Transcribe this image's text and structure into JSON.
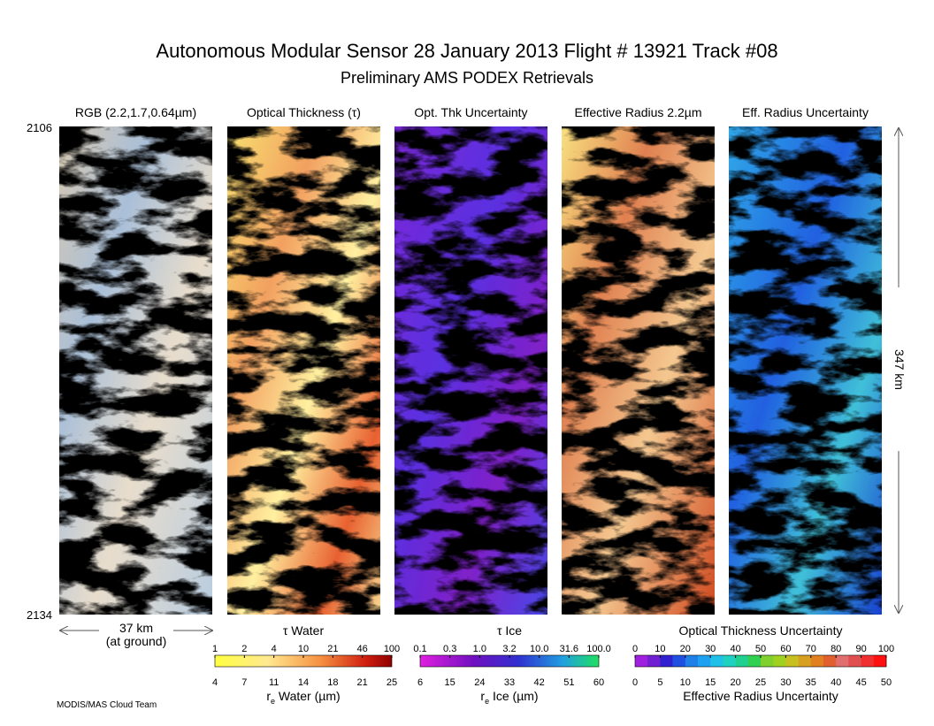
{
  "header": {
    "title": "Autonomous Modular Sensor  28 January 2013  Flight # 13921 Track #08",
    "subtitle": "Preliminary AMS PODEX Retrievals"
  },
  "panels": [
    "RGB (2.2,1.7,0.64µm)",
    "Optical Thickness (τ)",
    "Opt. Thk Uncertainty",
    "Effective Radius 2.2µm",
    "Eff. Radius Uncertainty"
  ],
  "scan_lines": {
    "start": "2106",
    "end": "2134"
  },
  "swath": {
    "length": "347 km",
    "width": "37 km",
    "width_note": "(at ground)"
  },
  "colorbars": [
    {
      "title": "τ Water",
      "top_ticks": [
        "1",
        "2",
        "4",
        "10",
        "21",
        "46",
        "100"
      ],
      "bottom_ticks": [
        "4",
        "7",
        "11",
        "14",
        "18",
        "21",
        "25"
      ],
      "bottom_symbol": "r",
      "bottom_subscript": "e",
      "bottom_title": " Water (µm)"
    },
    {
      "title": "τ Ice",
      "top_ticks": [
        "0.1",
        "0.3",
        "1.0",
        "3.2",
        "10.0",
        "31.6",
        "100.0"
      ],
      "bottom_ticks": [
        "6",
        "15",
        "24",
        "33",
        "42",
        "51",
        "60"
      ],
      "bottom_symbol": "r",
      "bottom_subscript": "e",
      "bottom_title": " Ice (µm)"
    },
    {
      "title": "Optical Thickness Uncertainty",
      "top_ticks": [
        "0",
        "10",
        "20",
        "30",
        "40",
        "50",
        "60",
        "70",
        "80",
        "90",
        "100"
      ],
      "bottom_ticks": [
        "0",
        "5",
        "10",
        "15",
        "20",
        "25",
        "30",
        "35",
        "40",
        "45",
        "50"
      ],
      "bottom_title": "Effective Radius Uncertainty"
    }
  ],
  "credit": "MODIS/MAS Cloud Team"
}
